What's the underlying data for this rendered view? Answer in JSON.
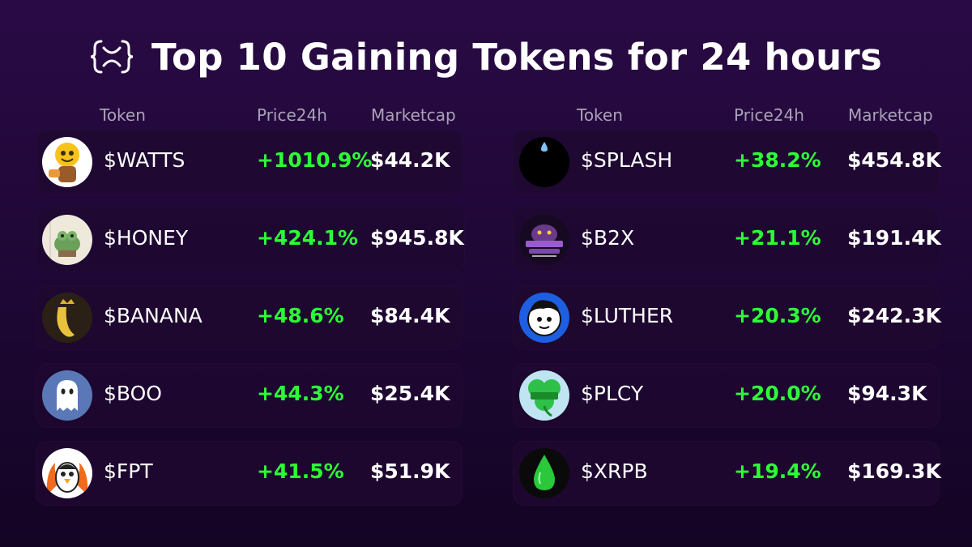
{
  "title": "Top 10 Gaining Tokens for 24 hours",
  "logo_icon": "xrpl-braces-x-icon",
  "headers": {
    "token": "Token",
    "price": "Price24h",
    "mcap": "Marketcap"
  },
  "colors": {
    "gain": "#2dff36",
    "background": "#1d0734",
    "row": "#1e0830"
  },
  "left_tokens": [
    {
      "name": "$WATTS",
      "change": "+1010.9%",
      "mcap": "$44.2K",
      "icon": "cartoon-bulb-icon"
    },
    {
      "name": "$HONEY",
      "change": "+424.1%",
      "mcap": "$945.8K",
      "icon": "frog-icon"
    },
    {
      "name": "$BANANA",
      "change": "+48.6%",
      "mcap": "$84.4K",
      "icon": "crowned-banana-icon"
    },
    {
      "name": "$BOO",
      "change": "+44.3%",
      "mcap": "$25.4K",
      "icon": "ghost-icon"
    },
    {
      "name": "$FPT",
      "change": "+41.5%",
      "mcap": "$51.9K",
      "icon": "flaming-penguin-icon"
    }
  ],
  "right_tokens": [
    {
      "name": "$SPLASH",
      "change": "+38.2%",
      "mcap": "$454.8K",
      "icon": "water-drop-dark-icon"
    },
    {
      "name": "$B2X",
      "change": "+21.1%",
      "mcap": "$191.4K",
      "icon": "bridge-gorilla-icon"
    },
    {
      "name": "$LUTHER",
      "change": "+20.3%",
      "mcap": "$242.3K",
      "icon": "cartoon-face-icon"
    },
    {
      "name": "$PLCY",
      "change": "+20.0%",
      "mcap": "$94.3K",
      "icon": "clover-icon"
    },
    {
      "name": "$XRPB",
      "change": "+19.4%",
      "mcap": "$169.3K",
      "icon": "green-drop-icon"
    }
  ]
}
